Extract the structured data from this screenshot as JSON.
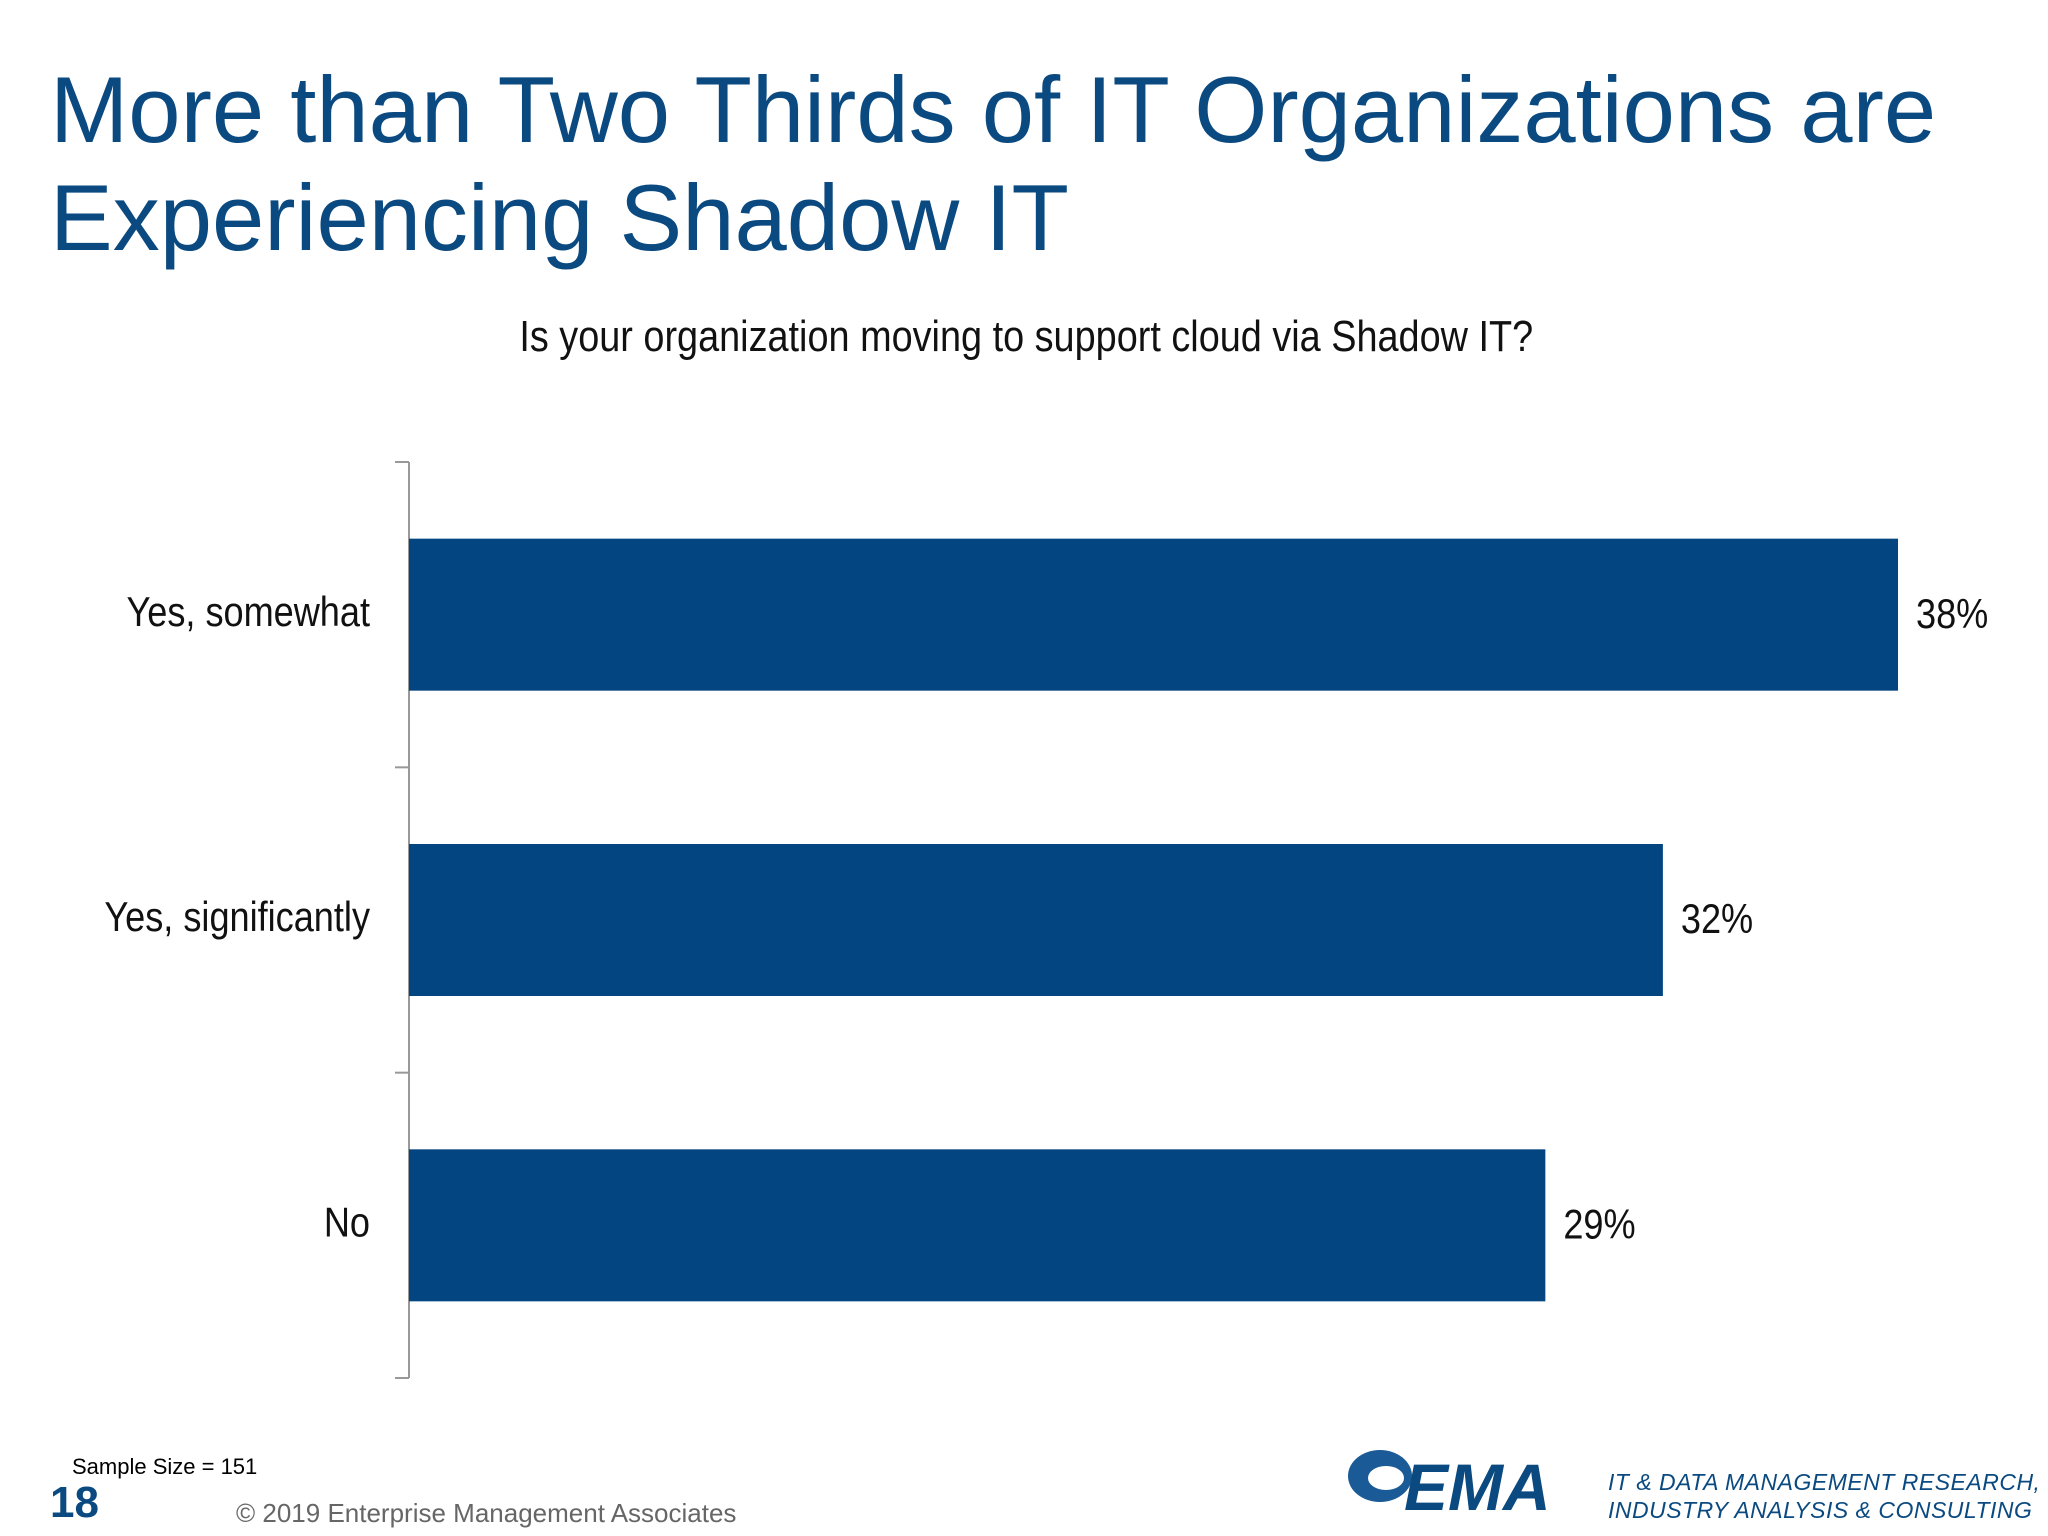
{
  "slide": {
    "title": "More than Two Thirds of IT Organizations are Experiencing Shadow IT",
    "sample_size": "Sample Size = 151",
    "page_number": "18",
    "copyright": "© 2019 Enterprise Management Associates",
    "logo_text": "EMA",
    "tagline": [
      "IT & DATA MANAGEMENT RESEARCH,",
      "INDUSTRY ANALYSIS & CONSULTING"
    ]
  },
  "chart_data": {
    "type": "bar",
    "orientation": "horizontal",
    "title": "Is your organization moving to support cloud via Shadow IT?",
    "categories": [
      "Yes, somewhat",
      "Yes, significantly",
      "No"
    ],
    "values": [
      38,
      32,
      29
    ],
    "value_labels": [
      "38%",
      "32%",
      "29%"
    ],
    "unit": "%",
    "xlim": [
      0,
      38
    ],
    "grid": false,
    "legend": "none",
    "bar_color": "#034581"
  },
  "colors": {
    "title": "#0b4a80",
    "bar": "#034581",
    "axis": "#999999"
  }
}
